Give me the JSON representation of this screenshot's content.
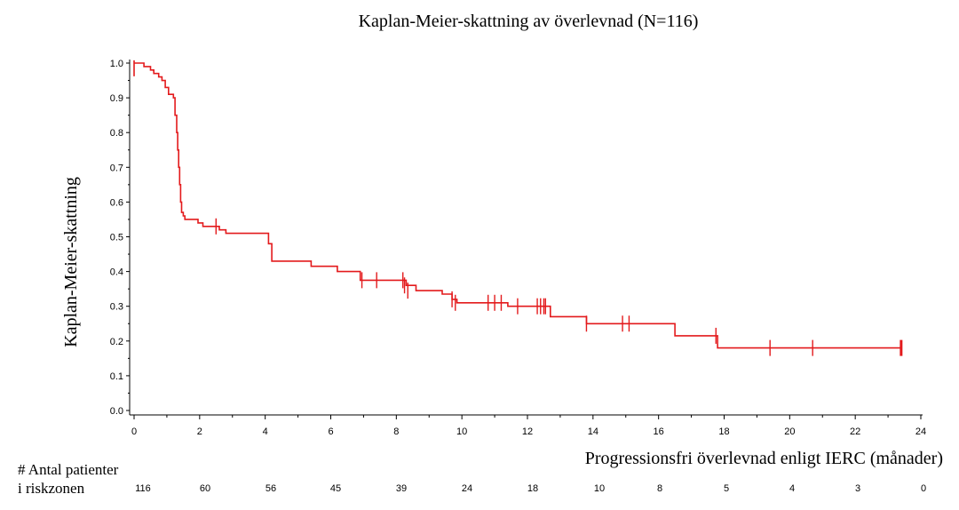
{
  "chart_data": {
    "type": "line",
    "title": "Kaplan-Meier-skattning av överlevnad (N=116)",
    "xlabel": "Progressionsfri överlevnad enligt IERC (månader)",
    "ylabel": "Kaplan-Meier-skattning",
    "xlim": [
      0,
      24
    ],
    "ylim": [
      0,
      1
    ],
    "x_ticks": [
      "0",
      "2",
      "4",
      "6",
      "8",
      "10",
      "12",
      "14",
      "16",
      "18",
      "20",
      "22",
      "24"
    ],
    "y_ticks": [
      "0.0",
      "0.1",
      "0.2",
      "0.3",
      "0.4",
      "0.5",
      "0.6",
      "0.7",
      "0.8",
      "0.9",
      "1.0"
    ],
    "line_color": "#e31a1c",
    "series": [
      {
        "name": "Kaplan-Meier",
        "steps": [
          [
            0,
            1.0
          ],
          [
            0.3,
            0.99
          ],
          [
            0.5,
            0.98
          ],
          [
            0.6,
            0.97
          ],
          [
            0.75,
            0.96
          ],
          [
            0.85,
            0.95
          ],
          [
            0.95,
            0.93
          ],
          [
            1.05,
            0.91
          ],
          [
            1.2,
            0.9
          ],
          [
            1.25,
            0.85
          ],
          [
            1.3,
            0.8
          ],
          [
            1.33,
            0.75
          ],
          [
            1.36,
            0.7
          ],
          [
            1.39,
            0.65
          ],
          [
            1.42,
            0.6
          ],
          [
            1.45,
            0.57
          ],
          [
            1.5,
            0.56
          ],
          [
            1.55,
            0.55
          ],
          [
            1.95,
            0.54
          ],
          [
            2.1,
            0.53
          ],
          [
            2.6,
            0.52
          ],
          [
            2.8,
            0.51
          ],
          [
            4.1,
            0.48
          ],
          [
            4.2,
            0.43
          ],
          [
            5.4,
            0.415
          ],
          [
            6.2,
            0.4
          ],
          [
            6.9,
            0.375
          ],
          [
            8.3,
            0.36
          ],
          [
            8.6,
            0.345
          ],
          [
            9.4,
            0.335
          ],
          [
            9.7,
            0.32
          ],
          [
            9.85,
            0.31
          ],
          [
            11.4,
            0.3
          ],
          [
            12.7,
            0.27
          ],
          [
            13.8,
            0.25
          ],
          [
            16.5,
            0.215
          ],
          [
            17.8,
            0.18
          ],
          [
            23.4,
            0.18
          ]
        ],
        "censored": [
          [
            2.5,
            0.53
          ],
          [
            6.95,
            0.375
          ],
          [
            7.4,
            0.375
          ],
          [
            8.2,
            0.375
          ],
          [
            8.25,
            0.36
          ],
          [
            8.35,
            0.345
          ],
          [
            9.7,
            0.32
          ],
          [
            9.8,
            0.31
          ],
          [
            10.8,
            0.31
          ],
          [
            11.0,
            0.31
          ],
          [
            11.2,
            0.31
          ],
          [
            11.7,
            0.3
          ],
          [
            12.3,
            0.3
          ],
          [
            12.4,
            0.3
          ],
          [
            12.5,
            0.3
          ],
          [
            12.55,
            0.3
          ],
          [
            13.8,
            0.25
          ],
          [
            14.9,
            0.25
          ],
          [
            15.1,
            0.25
          ],
          [
            17.75,
            0.215
          ],
          [
            19.4,
            0.18
          ],
          [
            20.7,
            0.18
          ],
          [
            23.4,
            0.18
          ]
        ]
      }
    ],
    "risk_table": {
      "title_line1": "# Antal patienter",
      "title_line2": "i riskzonen",
      "values": [
        "116",
        "60",
        "56",
        "45",
        "39",
        "24",
        "18",
        "10",
        "8",
        "5",
        "4",
        "3",
        "0"
      ]
    }
  }
}
